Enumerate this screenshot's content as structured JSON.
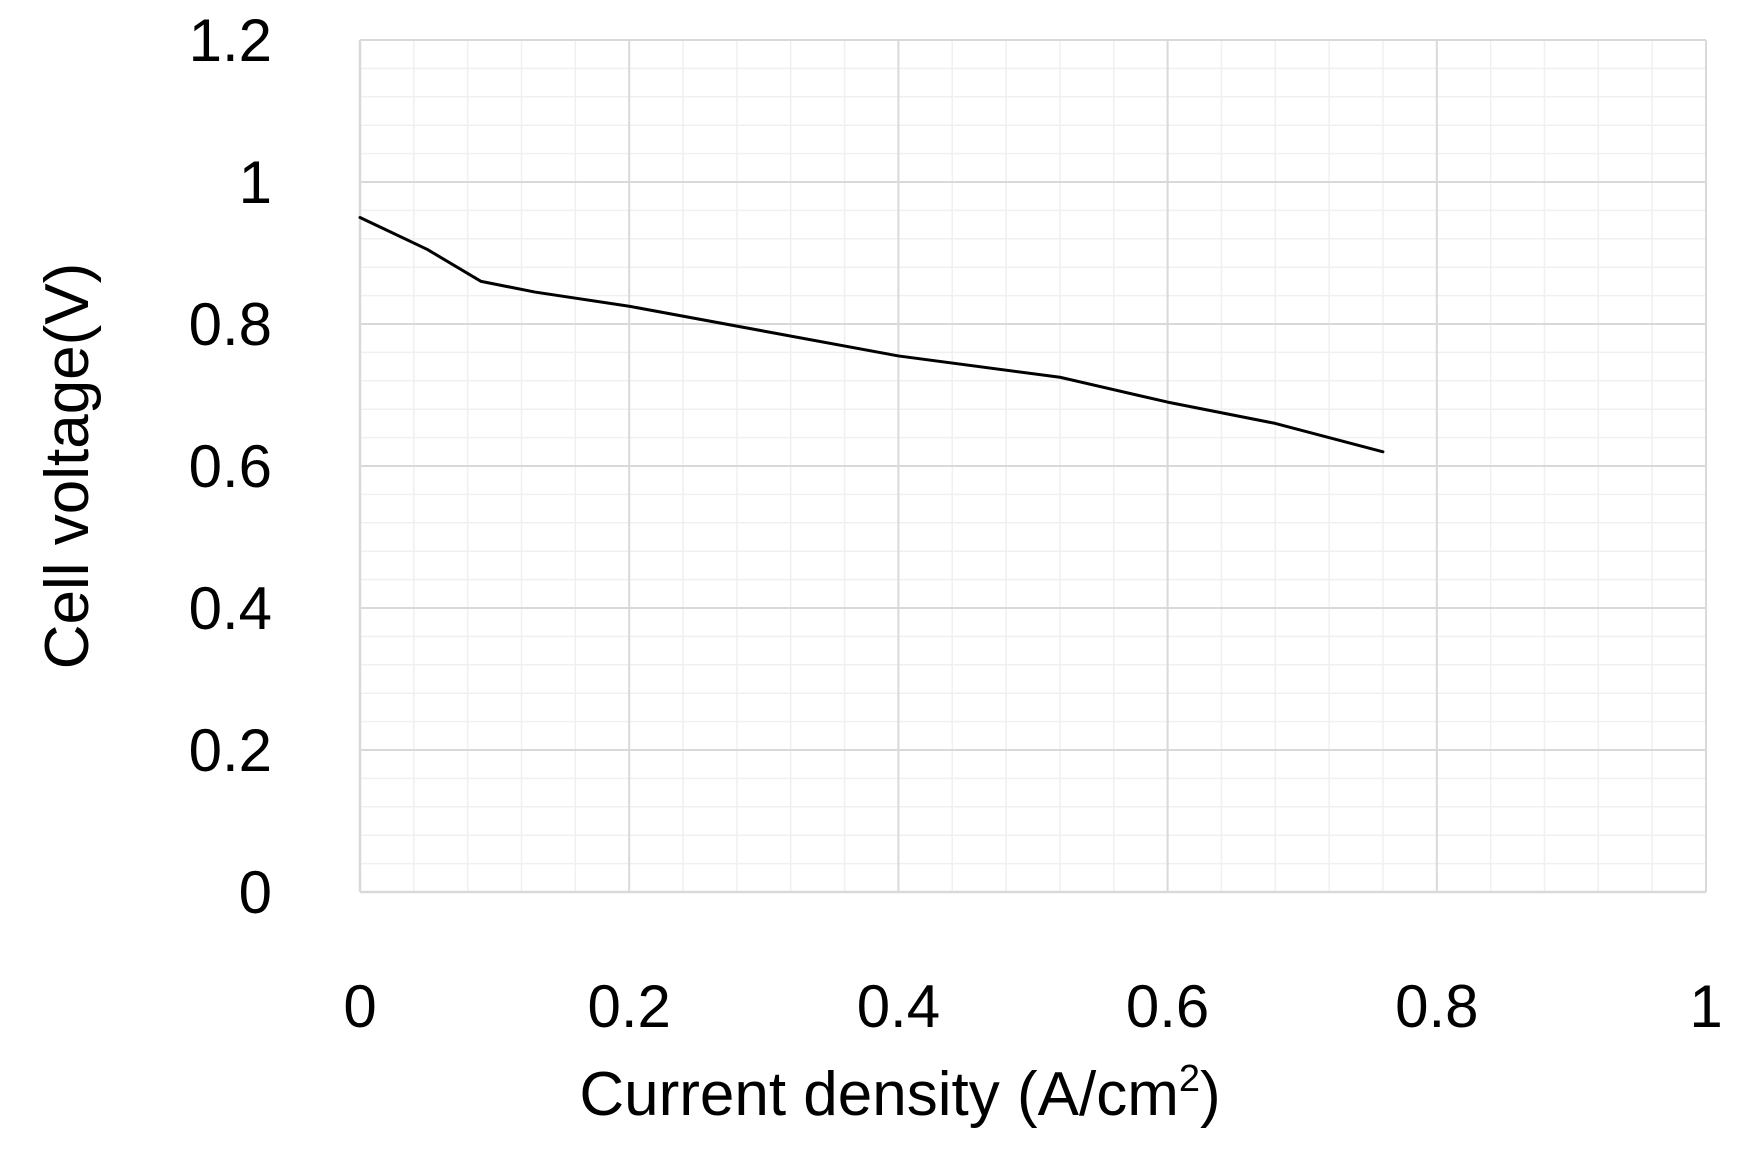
{
  "chart_data": {
    "type": "line",
    "title": "",
    "xlabel": "Current density (A/cm",
    "xlabel_sup": "2",
    "xlabel_end": ")",
    "ylabel": "Cell voltage(V)",
    "xlim": [
      0,
      1
    ],
    "ylim": [
      0,
      1.2
    ],
    "x_ticks": [
      0,
      0.2,
      0.4,
      0.6,
      0.8,
      1
    ],
    "x_tick_labels": [
      "0",
      "0.2",
      "0.4",
      "0.6",
      "0.8",
      "1"
    ],
    "y_ticks": [
      0,
      0.2,
      0.4,
      0.6,
      0.8,
      1,
      1.2
    ],
    "y_tick_labels": [
      "0",
      "0.2",
      "0.4",
      "0.6",
      "0.8",
      "1",
      "1.2"
    ],
    "x_minor_step": 0.04,
    "y_minor_step": 0.04,
    "grid": true,
    "legend": "none",
    "colors": {
      "line": "#000000",
      "major_grid": "#d9d9d9",
      "minor_grid": "#f0f0f0",
      "axis": "#d9d9d9"
    },
    "series": [
      {
        "x": [
          0,
          0.05,
          0.09,
          0.13,
          0.2,
          0.3,
          0.4,
          0.52,
          0.6,
          0.68,
          0.76
        ],
        "y": [
          0.95,
          0.905,
          0.86,
          0.845,
          0.825,
          0.79,
          0.755,
          0.725,
          0.69,
          0.66,
          0.62
        ]
      }
    ]
  }
}
